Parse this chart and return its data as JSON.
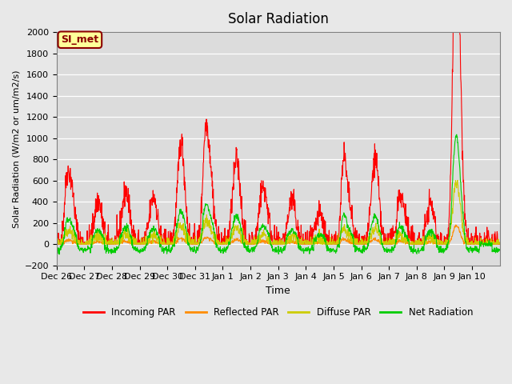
{
  "title": "Solar Radiation",
  "xlabel": "Time",
  "ylabel": "Solar Radiation (W/m2 or um/m2/s)",
  "ylim": [
    -200,
    2000
  ],
  "yticks": [
    -200,
    0,
    200,
    400,
    600,
    800,
    1000,
    1200,
    1400,
    1600,
    1800,
    2000
  ],
  "annotation_text": "SI_met",
  "annotation_color": "#8B0000",
  "annotation_bg": "#FFFF99",
  "series_colors": {
    "incoming": "#FF0000",
    "reflected": "#FF8C00",
    "diffuse": "#CCCC00",
    "net": "#00CC00"
  },
  "legend_labels": [
    "Incoming PAR",
    "Reflected PAR",
    "Diffuse PAR",
    "Net Radiation"
  ],
  "tick_labels": [
    "Dec 26",
    "Dec 27",
    "Dec 28",
    "Dec 29",
    "Dec 30",
    "Dec 31",
    "Jan 1",
    "Jan 2",
    "Jan 3",
    "Jan 4",
    "Jan 5",
    "Jan 6",
    "Jan 7",
    "Jan 8",
    "Jan 9",
    "Jan 10"
  ],
  "bg_color": "#E8E8E8",
  "plot_bg": "#DCDCDC",
  "n_days": 16
}
